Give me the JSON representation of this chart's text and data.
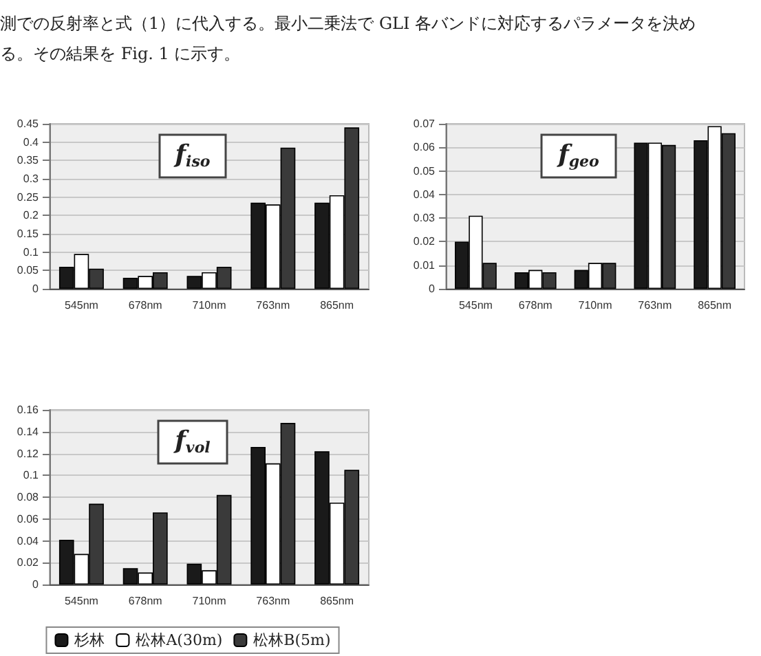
{
  "chart_data": [
    {
      "type": "bar",
      "title": "f$_{iso}$",
      "annotations": [
        "測での反射率と式（1）に代入する。最小二乗法で GLI 各バンドに対応するパラメータを決め",
        "る。その結果を Fig. 1 に示す。"
      ],
      "categories": [
        "545nm",
        "678nm",
        "710nm",
        "763nm",
        "865nm"
      ],
      "series": [
        {
          "color": "#1a1a1a",
          "values": [
            0.06,
            0.03,
            0.035,
            0.235,
            0.235
          ]
        },
        {
          "color": "#ffffff",
          "values": [
            0.095,
            0.035,
            0.045,
            0.23,
            0.255
          ]
        },
        {
          "color": "#3a3a3a",
          "values": [
            0.055,
            0.045,
            0.06,
            0.385,
            0.44
          ]
        }
      ],
      "ylim": [
        0,
        0.45
      ],
      "yticks": [
        0,
        0.05,
        0.1,
        0.15,
        0.2,
        0.25,
        0.3,
        0.35,
        0.4,
        0.45
      ],
      "grid": "y",
      "legend": false
    },
    {
      "type": "bar",
      "title": "f$_{geo}$",
      "categories": [
        "545nm",
        "678nm",
        "710nm",
        "763nm",
        "865nm"
      ],
      "series": [
        {
          "color": "#1a1a1a",
          "values": [
            0.02,
            0.007,
            0.008,
            0.062,
            0.063
          ]
        },
        {
          "color": "#ffffff",
          "values": [
            0.031,
            0.008,
            0.011,
            0.062,
            0.069
          ]
        },
        {
          "color": "#3a3a3a",
          "values": [
            0.011,
            0.007,
            0.011,
            0.061,
            0.066
          ]
        }
      ],
      "ylim": [
        0,
        0.07
      ],
      "yticks": [
        0,
        0.01,
        0.02,
        0.03,
        0.04,
        0.05,
        0.06,
        0.07
      ],
      "grid": "y",
      "legend": false
    },
    {
      "type": "bar",
      "title": "f$_{vol}$",
      "categories": [
        "545nm",
        "678nm",
        "710nm",
        "763nm",
        "865nm"
      ],
      "series": [
        {
          "name": "杉林",
          "color": "#1a1a1a",
          "values": [
            0.041,
            0.015,
            0.019,
            0.126,
            0.122
          ]
        },
        {
          "name": "松林A(30m)",
          "color": "#ffffff",
          "values": [
            0.028,
            0.011,
            0.013,
            0.111,
            0.075
          ]
        },
        {
          "name": "松林B(5m)",
          "color": "#3a3a3a",
          "values": [
            0.074,
            0.066,
            0.082,
            0.148,
            0.105
          ]
        }
      ],
      "ylim": [
        0,
        0.16
      ],
      "yticks": [
        0,
        0.02,
        0.04,
        0.06,
        0.08,
        0.1,
        0.12,
        0.14,
        0.16
      ],
      "grid": "y",
      "legend": "bottom"
    }
  ]
}
